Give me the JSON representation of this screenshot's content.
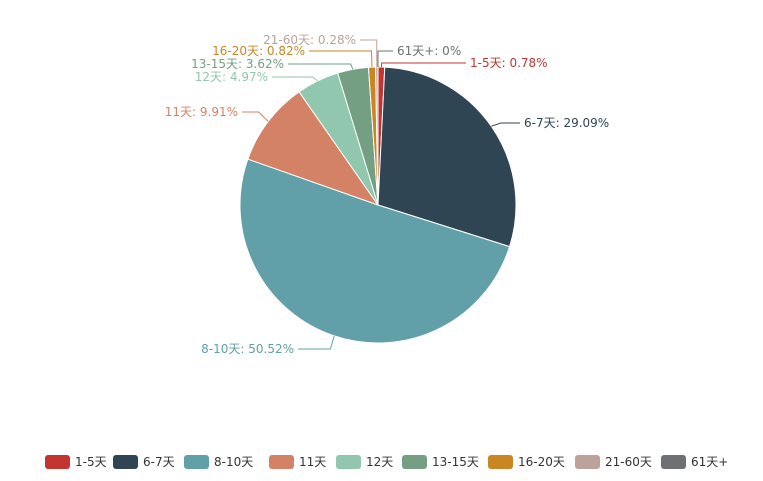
{
  "chart_data": {
    "type": "pie",
    "title": "",
    "categories": [
      "1-5天",
      "6-7天",
      "8-10天",
      "11天",
      "12天",
      "13-15天",
      "16-20天",
      "21-60天",
      "61天+"
    ],
    "values": [
      0.78,
      29.09,
      50.52,
      9.91,
      4.97,
      3.62,
      0.82,
      0.28,
      0
    ],
    "unit": "%",
    "colors": [
      "#c23531",
      "#2f4554",
      "#61a0a8",
      "#d48265",
      "#91c7ae",
      "#749f83",
      "#ca8622",
      "#bda29a",
      "#6e7074"
    ],
    "slice_labels": [
      "1-5天: 0.78%",
      "6-7天: 29.09%",
      "8-10天: 50.52%",
      "11天: 9.91%",
      "12天: 4.97%",
      "13-15天: 3.62%",
      "16-20天: 0.82%",
      "21-60天: 0.28%",
      "61天+: 0%"
    ],
    "legend": {
      "position": "bottom-center",
      "items": [
        "1-5天",
        "6-7天",
        "8-10天",
        "11天",
        "12天",
        "13-15天",
        "16-20天",
        "21-60天",
        "61天+"
      ]
    }
  }
}
